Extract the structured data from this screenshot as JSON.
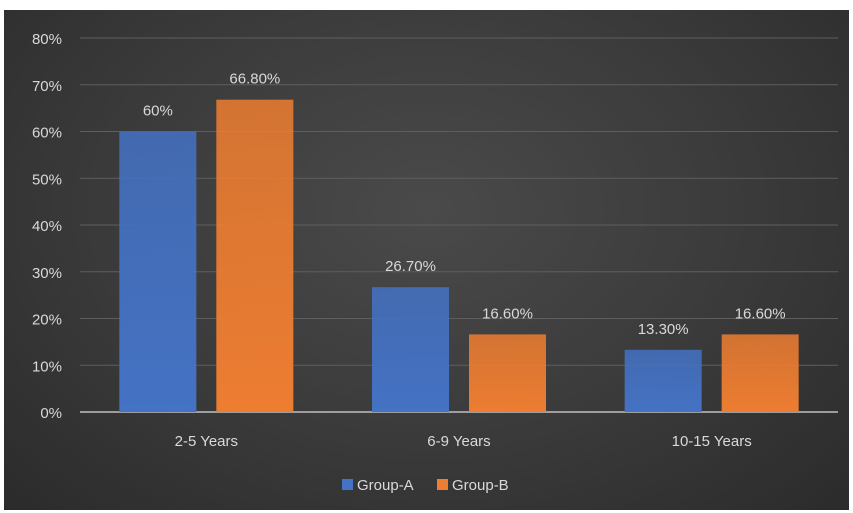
{
  "chart_data": {
    "type": "bar",
    "categories": [
      "2-5 Years",
      "6-9 Years",
      "10-15 Years"
    ],
    "series": [
      {
        "name": "Group-A",
        "values": [
          60,
          26.7,
          13.3
        ],
        "labels": [
          "60%",
          "26.70%",
          "13.30%"
        ],
        "color": "#4472c4"
      },
      {
        "name": "Group-B",
        "values": [
          66.8,
          16.6,
          16.6
        ],
        "labels": [
          "66.80%",
          "16.60%",
          "16.60%"
        ],
        "color": "#ed7d31"
      }
    ],
    "ylim": [
      0,
      80
    ],
    "yticks": [
      0,
      10,
      20,
      30,
      40,
      50,
      60,
      70,
      80
    ],
    "ytick_labels": [
      "0%",
      "10%",
      "20%",
      "30%",
      "40%",
      "50%",
      "60%",
      "70%",
      "80%"
    ],
    "grid": true,
    "legend_position": "bottom",
    "colors": {
      "text": "#d9d9d9",
      "grid": "#5e5e5e",
      "axis": "#bfbfbf"
    }
  }
}
